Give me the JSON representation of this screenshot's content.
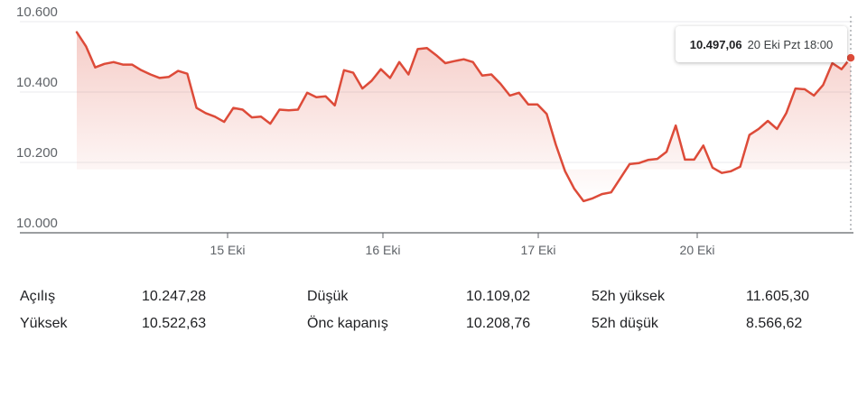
{
  "chart_data": {
    "type": "area",
    "y_ticks": [
      "10.600",
      "10.400",
      "10.200",
      "10.000"
    ],
    "y_tick_values": [
      10600,
      10400,
      10200,
      10000
    ],
    "ylim": [
      10000,
      10600
    ],
    "x_ticks": [
      "15 Eki",
      "16 Eki",
      "17 Eki",
      "20 Eki"
    ],
    "line_color": "#dd4b39",
    "fill_color": "#dd4b39",
    "grid": true,
    "series": [
      {
        "values": [
          10570,
          10530,
          10470,
          10480,
          10485,
          10478,
          10478,
          10462,
          10450,
          10440,
          10443,
          10460,
          10452,
          10355,
          10340,
          10330,
          10315,
          10355,
          10350,
          10328,
          10330,
          10310,
          10350,
          10348,
          10350,
          10398,
          10385,
          10388,
          10362,
          10462,
          10455,
          10410,
          10432,
          10465,
          10440,
          10485,
          10450,
          10522,
          10525,
          10505,
          10482,
          10488,
          10493,
          10485,
          10447,
          10450,
          10423,
          10390,
          10398,
          10365,
          10365,
          10338,
          10250,
          10175,
          10125,
          10090,
          10098,
          10110,
          10115,
          10155,
          10195,
          10198,
          10207,
          10210,
          10230,
          10305,
          10208,
          10208,
          10248,
          10185,
          10170,
          10175,
          10188,
          10278,
          10295,
          10318,
          10295,
          10340,
          10410,
          10408,
          10390,
          10420,
          10482,
          10465,
          10497
        ]
      }
    ],
    "last_point": {
      "value": "10.497,06",
      "time": "20 Eki Pzt 18:00"
    }
  },
  "stats": {
    "col1": [
      {
        "label": "Açılış",
        "value": "10.247,28"
      },
      {
        "label": "Yüksek",
        "value": "10.522,63"
      }
    ],
    "col2": [
      {
        "label": "Düşük",
        "value": "10.109,02"
      },
      {
        "label": "Önc kapanış",
        "value": "10.208,76"
      }
    ],
    "col3": [
      {
        "label": "52h yüksek",
        "value": "11.605,30"
      },
      {
        "label": "52h düşük",
        "value": "8.566,62"
      }
    ]
  }
}
